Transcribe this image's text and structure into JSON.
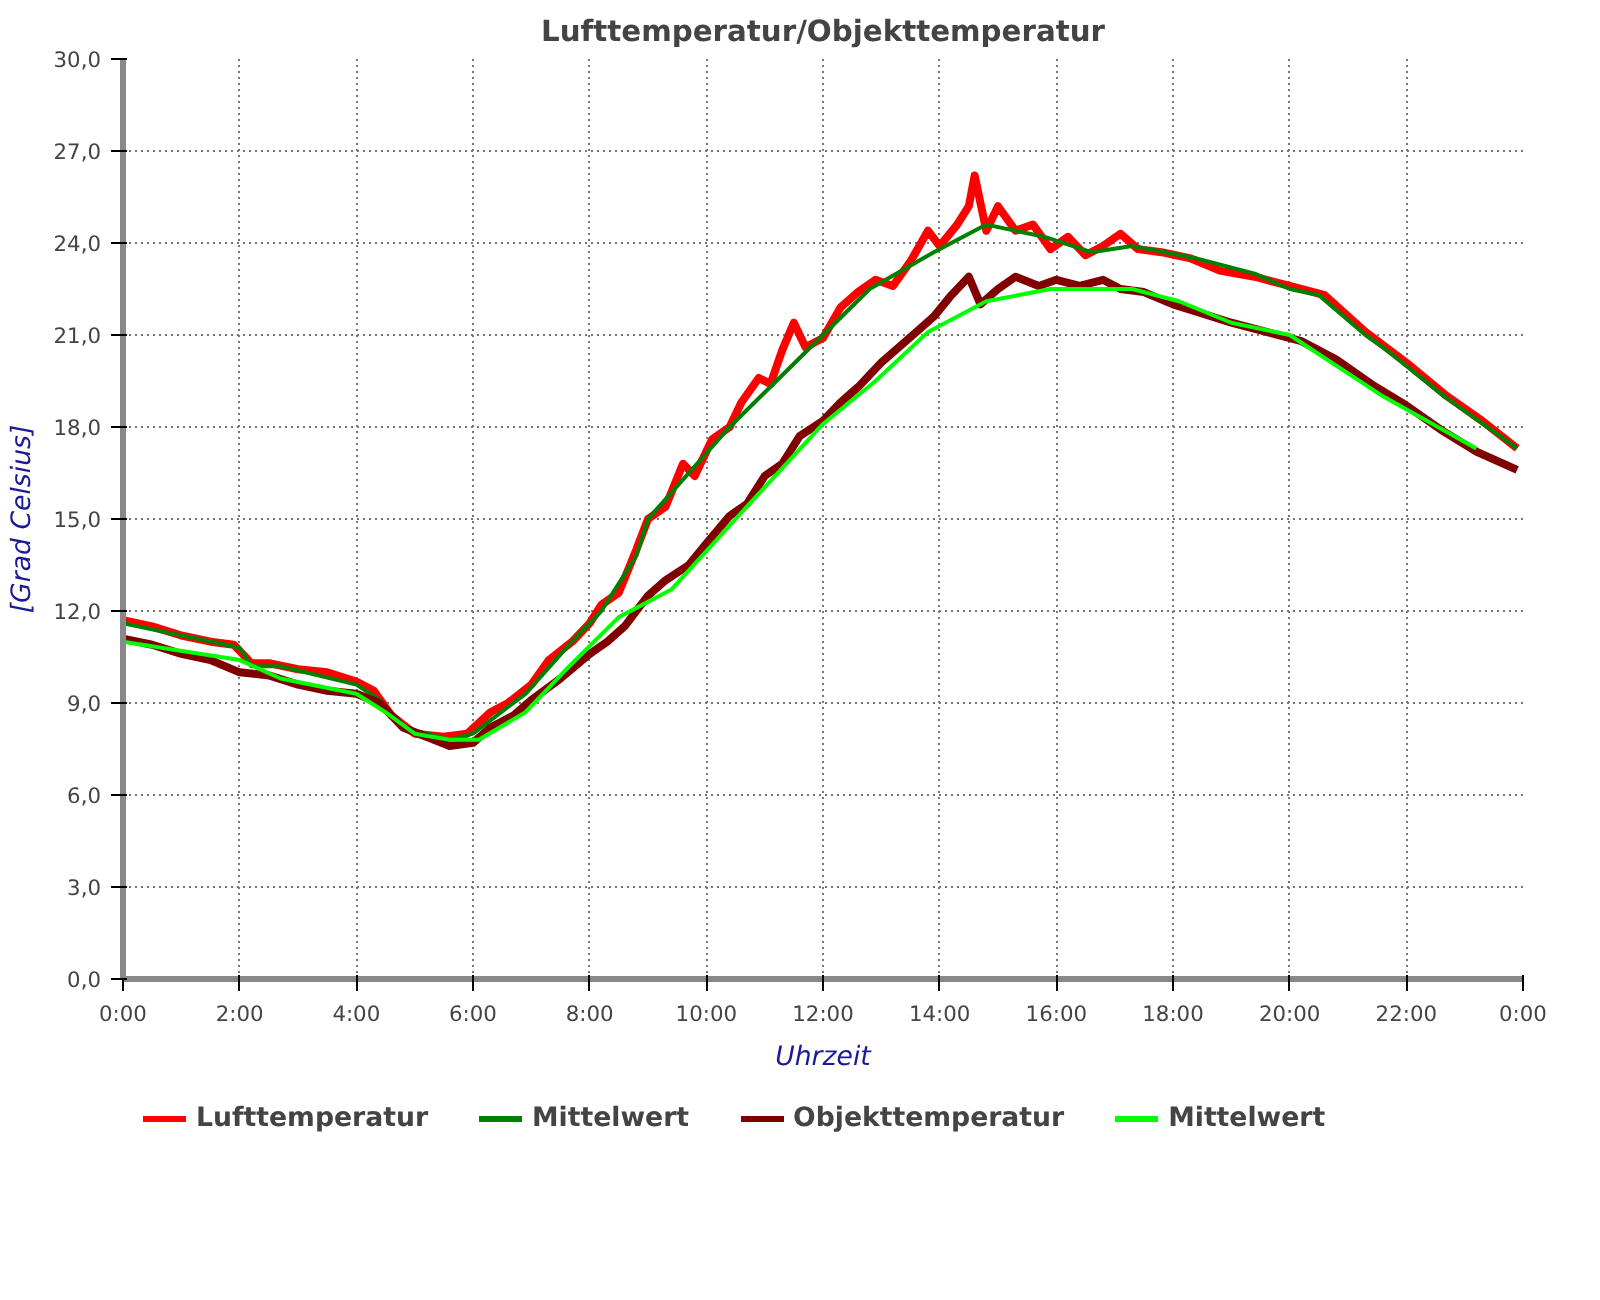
{
  "chart_data": {
    "type": "line",
    "title": "Lufttemperatur/Objekttemperatur",
    "xlabel": "Uhrzeit",
    "ylabel": "[Grad Celsius]",
    "xlim": [
      0,
      24
    ],
    "ylim": [
      0,
      30
    ],
    "xticks": [
      {
        "value": 0,
        "label": "0:00"
      },
      {
        "value": 2,
        "label": "2:00"
      },
      {
        "value": 4,
        "label": "4:00"
      },
      {
        "value": 6,
        "label": "6:00"
      },
      {
        "value": 8,
        "label": "8:00"
      },
      {
        "value": 10,
        "label": "10:00"
      },
      {
        "value": 12,
        "label": "12:00"
      },
      {
        "value": 14,
        "label": "14:00"
      },
      {
        "value": 16,
        "label": "16:00"
      },
      {
        "value": 18,
        "label": "18:00"
      },
      {
        "value": 20,
        "label": "20:00"
      },
      {
        "value": 22,
        "label": "22:00"
      },
      {
        "value": 24,
        "label": "0:00"
      }
    ],
    "yticks": [
      {
        "value": 0,
        "label": "0,0"
      },
      {
        "value": 3,
        "label": "3,0"
      },
      {
        "value": 6,
        "label": "6,0"
      },
      {
        "value": 9,
        "label": "9,0"
      },
      {
        "value": 12,
        "label": "12,0"
      },
      {
        "value": 15,
        "label": "15,0"
      },
      {
        "value": 18,
        "label": "18,0"
      },
      {
        "value": 21,
        "label": "21,0"
      },
      {
        "value": 24,
        "label": "24,0"
      },
      {
        "value": 27,
        "label": "27,0"
      },
      {
        "value": 30,
        "label": "30,0"
      }
    ],
    "grid": true,
    "legend": "bottom",
    "marker": "none",
    "line_style": "solid",
    "series": [
      {
        "name": "Lufttemperatur",
        "color": "#ff0000",
        "x": [
          0,
          0.5,
          1,
          1.5,
          1.9,
          2.2,
          2.5,
          3,
          3.5,
          4,
          4.3,
          4.6,
          5,
          5.5,
          5.9,
          6.3,
          6.6,
          7,
          7.3,
          7.7,
          8,
          8.2,
          8.5,
          8.8,
          9.0,
          9.3,
          9.6,
          9.8,
          10.1,
          10.4,
          10.6,
          10.9,
          11.1,
          11.3,
          11.5,
          11.7,
          12.0,
          12.3,
          12.6,
          12.9,
          13.2,
          13.5,
          13.8,
          14.0,
          14.3,
          14.5,
          14.6,
          14.8,
          15.0,
          15.3,
          15.6,
          15.9,
          16.2,
          16.5,
          16.8,
          17.1,
          17.4,
          17.8,
          18.3,
          18.8,
          19.4,
          20.0,
          20.6,
          21.3,
          22.0,
          22.7,
          23.3,
          23.9
        ],
        "values": [
          11.7,
          11.5,
          11.2,
          11.0,
          10.9,
          10.3,
          10.3,
          10.1,
          10.0,
          9.7,
          9.4,
          8.6,
          8.0,
          7.9,
          8.0,
          8.7,
          9.0,
          9.6,
          10.4,
          11.0,
          11.6,
          12.2,
          12.6,
          14.0,
          15.0,
          15.4,
          16.8,
          16.4,
          17.6,
          18.0,
          18.8,
          19.6,
          19.4,
          20.5,
          21.4,
          20.6,
          20.9,
          21.9,
          22.4,
          22.8,
          22.6,
          23.4,
          24.4,
          23.9,
          24.6,
          25.2,
          26.2,
          24.4,
          25.2,
          24.4,
          24.6,
          23.8,
          24.2,
          23.6,
          23.9,
          24.3,
          23.8,
          23.7,
          23.5,
          23.1,
          22.9,
          22.6,
          22.3,
          21.1,
          20.1,
          19.0,
          18.2,
          17.3
        ]
      },
      {
        "name": "Mittelwert",
        "color": "#008000",
        "x": [
          0,
          2.0,
          2.2,
          2.7,
          4.0,
          4.4,
          4.8,
          5.6,
          6.0,
          6.9,
          7.6,
          8.2,
          8.8,
          9.0,
          10.4,
          12.0,
          12.8,
          13.9,
          14.8,
          15.8,
          16.6,
          17.3,
          18.4,
          19.4,
          20.0,
          20.5,
          21.3,
          21.6,
          22.65,
          23.9
        ],
        "values": [
          11.6,
          10.8,
          10.2,
          10.2,
          9.6,
          9.1,
          8.2,
          7.8,
          8.0,
          9.3,
          10.8,
          12.0,
          13.8,
          15.0,
          18.0,
          21.0,
          22.5,
          23.7,
          24.6,
          24.2,
          23.7,
          23.9,
          23.5,
          23.0,
          22.5,
          22.3,
          21.0,
          20.6,
          19.0,
          17.3
        ]
      },
      {
        "name": "Objekttemperatur",
        "color": "#800000",
        "x": [
          0,
          0.5,
          1,
          1.5,
          2,
          2.5,
          3,
          3.5,
          4,
          4.4,
          4.8,
          5.2,
          5.6,
          6,
          6.3,
          6.7,
          7,
          7.5,
          8,
          8.3,
          8.6,
          9,
          9.3,
          9.7,
          10,
          10.4,
          10.7,
          11,
          11.3,
          11.6,
          12,
          12.3,
          12.6,
          13,
          13.3,
          13.6,
          13.9,
          14.2,
          14.5,
          14.7,
          15,
          15.3,
          15.7,
          16,
          16.4,
          16.8,
          17.1,
          17.5,
          18,
          18.5,
          19,
          19.6,
          20.2,
          20.8,
          21.4,
          22,
          22.6,
          23.2,
          23.9
        ],
        "values": [
          11.1,
          10.9,
          10.6,
          10.4,
          10.0,
          9.9,
          9.6,
          9.4,
          9.3,
          9.0,
          8.2,
          7.9,
          7.6,
          7.7,
          8.2,
          8.6,
          9.1,
          9.8,
          10.6,
          11.0,
          11.5,
          12.5,
          13.0,
          13.5,
          14.2,
          15.1,
          15.5,
          16.4,
          16.8,
          17.7,
          18.2,
          18.8,
          19.3,
          20.1,
          20.6,
          21.1,
          21.6,
          22.3,
          22.9,
          22.0,
          22.5,
          22.9,
          22.6,
          22.8,
          22.6,
          22.8,
          22.5,
          22.4,
          22.0,
          21.7,
          21.4,
          21.1,
          20.8,
          20.2,
          19.4,
          18.7,
          17.9,
          17.2,
          16.6
        ]
      },
      {
        "name": "Mittelwert",
        "color": "#00ff00",
        "x": [
          0,
          2.0,
          2.7,
          4.0,
          4.5,
          5.0,
          5.6,
          6.1,
          6.9,
          7.6,
          8.5,
          9.4,
          10.5,
          12.0,
          12.9,
          13.8,
          14.8,
          15.9,
          17.3,
          18.1,
          19.0,
          20.0,
          21.6,
          23.2
        ],
        "values": [
          11.0,
          10.4,
          9.8,
          9.3,
          8.7,
          8.0,
          7.8,
          7.8,
          8.7,
          10.1,
          11.8,
          12.7,
          15.0,
          18.1,
          19.5,
          21.1,
          22.1,
          22.5,
          22.5,
          22.1,
          21.4,
          21.0,
          19.0,
          17.3
        ]
      }
    ]
  }
}
